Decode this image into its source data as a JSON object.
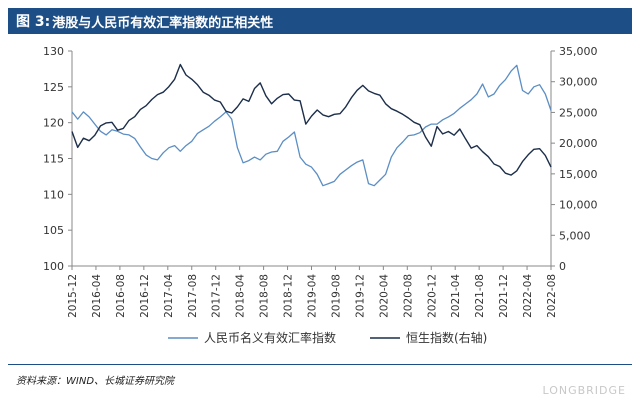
{
  "header": {
    "figure_label": "图 3:",
    "title": "港股与人民币有效汇率指数的正相关性"
  },
  "chart_data": {
    "type": "line",
    "title": "港股与人民币有效汇率指数的正相关性",
    "x_ticks": [
      "2015-12",
      "2016-04",
      "2016-08",
      "2016-12",
      "2017-04",
      "2017-08",
      "2017-12",
      "2018-04",
      "2018-08",
      "2018-12",
      "2019-04",
      "2019-08",
      "2019-12",
      "2020-04",
      "2020-08",
      "2020-12",
      "2021-04",
      "2021-08",
      "2021-12",
      "2022-04",
      "2022-08"
    ],
    "y_left": {
      "ticks": [
        "100",
        "105",
        "110",
        "115",
        "120",
        "125",
        "130"
      ],
      "ylim": [
        100,
        130
      ]
    },
    "y_right": {
      "ticks": [
        "0",
        "5,000",
        "10,000",
        "15,000",
        "20,000",
        "25,000",
        "30,000",
        "35,000"
      ],
      "ylim": [
        0,
        35000
      ]
    },
    "series": [
      {
        "name": "人民币名义有效汇率指数",
        "axis": "left",
        "color": "#5b8ec4",
        "x": [
          0,
          1,
          2,
          3,
          4,
          5,
          6,
          7,
          8,
          9,
          10,
          11,
          12,
          13,
          14,
          15,
          16,
          17,
          18,
          19,
          20,
          21,
          22,
          23,
          24,
          25,
          26,
          27,
          28,
          29,
          30,
          31,
          32,
          33,
          34,
          35,
          36,
          37,
          38,
          39,
          40,
          41,
          42,
          43,
          44,
          45,
          46,
          47,
          48,
          49,
          50,
          51,
          52,
          53,
          54,
          55,
          56,
          57,
          58,
          59,
          60,
          61,
          62,
          63,
          64,
          65,
          66,
          67,
          68,
          69,
          70,
          71,
          72,
          73,
          74,
          75,
          76,
          77,
          78,
          79,
          80,
          81,
          82,
          83,
          84
        ],
        "values": [
          121.5,
          120.5,
          121.5,
          120.8,
          119.8,
          118.8,
          118.3,
          119,
          118.8,
          118.4,
          118.3,
          117.8,
          116.6,
          115.5,
          115,
          114.8,
          115.8,
          116.5,
          116.8,
          116,
          116.8,
          117.4,
          118.5,
          119,
          119.5,
          120.2,
          120.8,
          121.5,
          120.5,
          116.5,
          114.4,
          114.7,
          115.2,
          114.8,
          115.6,
          115.9,
          116,
          117.4,
          118,
          118.7,
          115.2,
          114.2,
          113.8,
          112.8,
          111.2,
          111.5,
          111.8,
          112.8,
          113.4,
          114,
          114.5,
          114.8,
          111.5,
          111.2,
          112,
          112.8,
          115.2,
          116.5,
          117.3,
          118.2,
          118.3,
          118.6,
          119.4,
          119.8,
          119.8,
          120.4,
          120.8,
          121.3,
          122,
          122.6,
          123.2,
          124,
          125.4,
          123.6,
          124,
          125.2,
          126,
          127.2,
          128,
          124.5,
          124,
          125,
          125.3,
          124,
          121.7
        ]
      },
      {
        "name": "恒生指数(右轴)",
        "axis": "right",
        "color": "#1c2e4a",
        "x": [
          0,
          1,
          2,
          3,
          4,
          5,
          6,
          7,
          8,
          9,
          10,
          11,
          12,
          13,
          14,
          15,
          16,
          17,
          18,
          19,
          20,
          21,
          22,
          23,
          24,
          25,
          26,
          27,
          28,
          29,
          30,
          31,
          32,
          33,
          34,
          35,
          36,
          37,
          38,
          39,
          40,
          41,
          42,
          43,
          44,
          45,
          46,
          47,
          48,
          49,
          50,
          51,
          52,
          53,
          54,
          55,
          56,
          57,
          58,
          59,
          60,
          61,
          62,
          63,
          64,
          65,
          66,
          67,
          68,
          69,
          70,
          71,
          72,
          73,
          74,
          75,
          76,
          77,
          78,
          79,
          80,
          81,
          82,
          83,
          84
        ],
        "values": [
          21900,
          19300,
          20800,
          20400,
          21300,
          22800,
          23300,
          23400,
          22100,
          22400,
          23700,
          24300,
          25500,
          26100,
          27100,
          27900,
          28300,
          29200,
          30400,
          32800,
          31100,
          30400,
          29500,
          28300,
          27800,
          27000,
          26700,
          25200,
          24900,
          25900,
          27200,
          26800,
          28900,
          29800,
          27700,
          26400,
          27300,
          27900,
          28000,
          27000,
          26900,
          23100,
          24400,
          25400,
          24600,
          24300,
          24700,
          24800,
          25900,
          27400,
          28600,
          29400,
          28500,
          28100,
          27800,
          26400,
          25600,
          25200,
          24700,
          24100,
          23400,
          23000,
          21000,
          19500,
          22700,
          21500,
          21900,
          21300,
          22300,
          20700,
          19200,
          19600,
          18600,
          17800,
          16600,
          16200,
          15100,
          14800,
          15500,
          17000,
          18100,
          19000,
          19100,
          18000,
          16100
        ]
      }
    ],
    "legend": [
      "人民币名义有效汇率指数",
      "恒生指数(右轴)"
    ],
    "legend_position": "bottom",
    "grid": false
  },
  "footer": {
    "source": "资料来源：WIND、长城证券研究院",
    "watermark": "LONGBRIDGE"
  }
}
